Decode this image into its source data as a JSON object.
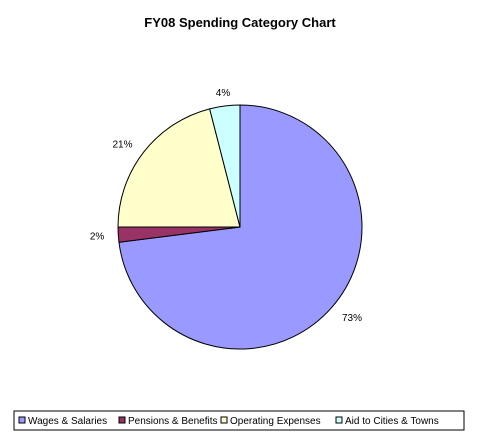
{
  "chart_data": {
    "type": "pie",
    "title": "FY08 Spending Category Chart",
    "slices": [
      {
        "name": "Wages & Salaries",
        "value": 73,
        "label": "73%",
        "color": "#9999ff"
      },
      {
        "name": "Pensions & Benefits",
        "value": 2,
        "label": "2%",
        "color": "#993366"
      },
      {
        "name": "Operating Expenses",
        "value": 21,
        "label": "21%",
        "color": "#ffffcc"
      },
      {
        "name": "Aid to Cities & Towns",
        "value": 4,
        "label": "4%",
        "color": "#ccffff"
      }
    ],
    "start_position": "12 o'clock",
    "direction": "clockwise",
    "legend_position": "bottom"
  }
}
